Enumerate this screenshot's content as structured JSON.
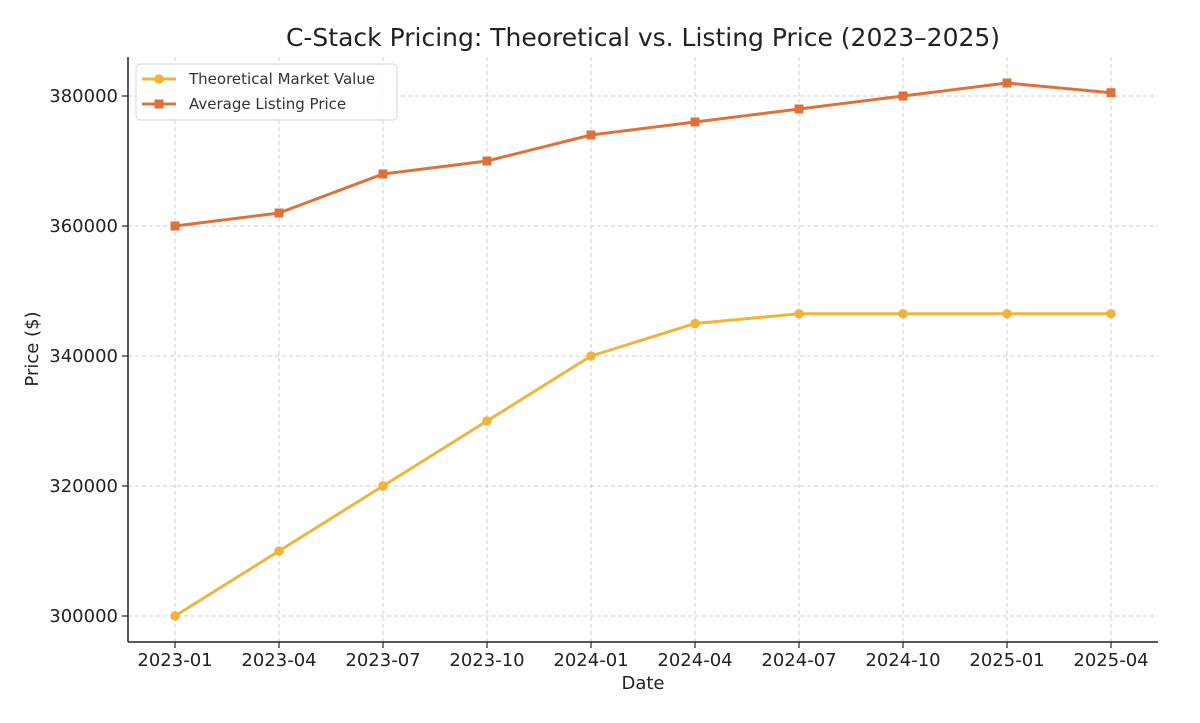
{
  "chart_data": {
    "type": "line",
    "title": "C-Stack Pricing: Theoretical vs. Listing Price (2023–2025)",
    "xlabel": "Date",
    "ylabel": "Price ($)",
    "categories": [
      "2023-01",
      "2023-04",
      "2023-07",
      "2023-10",
      "2024-01",
      "2024-04",
      "2024-07",
      "2024-10",
      "2025-01",
      "2025-04"
    ],
    "yticks": [
      300000,
      320000,
      340000,
      360000,
      380000
    ],
    "ylim": [
      296000,
      386000
    ],
    "grid": true,
    "legend_position": "top-left",
    "series": [
      {
        "name": "Theoretical Market Value",
        "color": "#f2b33d",
        "marker": "circle",
        "values": [
          300000,
          310000,
          320000,
          330000,
          340000,
          345000,
          346500,
          346500,
          346500,
          346500
        ]
      },
      {
        "name": "Average Listing Price",
        "color": "#e0703a",
        "marker": "square",
        "values": [
          360000,
          362000,
          368000,
          370000,
          374000,
          376000,
          378000,
          380000,
          382000,
          380500
        ]
      }
    ]
  }
}
